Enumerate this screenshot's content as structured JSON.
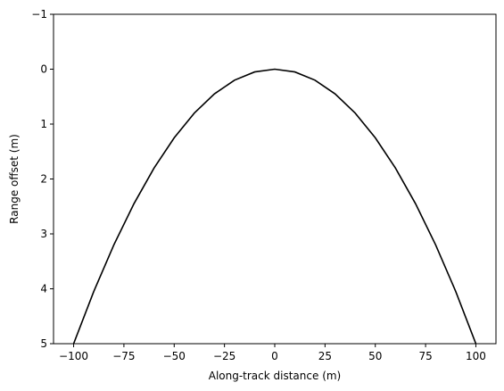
{
  "chart_data": {
    "type": "line",
    "title": "",
    "xlabel": "Along-track distance (m)",
    "ylabel": "Range offset (m)",
    "xlim": [
      -110,
      110
    ],
    "ylim": [
      5,
      -1
    ],
    "y_inverted": true,
    "grid": false,
    "legend": "none",
    "x_ticks": [
      {
        "value": -100,
        "label": "−100"
      },
      {
        "value": -75,
        "label": "−75"
      },
      {
        "value": -50,
        "label": "−50"
      },
      {
        "value": -25,
        "label": "−25"
      },
      {
        "value": 0,
        "label": "0"
      },
      {
        "value": 25,
        "label": "25"
      },
      {
        "value": 50,
        "label": "50"
      },
      {
        "value": 75,
        "label": "75"
      },
      {
        "value": 100,
        "label": "100"
      }
    ],
    "y_ticks": [
      {
        "value": -1,
        "label": "−1"
      },
      {
        "value": 0,
        "label": "0"
      },
      {
        "value": 1,
        "label": "1"
      },
      {
        "value": 2,
        "label": "2"
      },
      {
        "value": 3,
        "label": "3"
      },
      {
        "value": 4,
        "label": "4"
      },
      {
        "value": 5,
        "label": "5"
      }
    ],
    "series": [
      {
        "color": "#000000",
        "x": [
          -100,
          -90,
          -80,
          -70,
          -60,
          -50,
          -40,
          -30,
          -20,
          -10,
          0,
          10,
          20,
          30,
          40,
          50,
          60,
          70,
          80,
          90,
          100
        ],
        "y": [
          5.0,
          4.05,
          3.2,
          2.45,
          1.8,
          1.25,
          0.8,
          0.45,
          0.2,
          0.05,
          0.0,
          0.05,
          0.2,
          0.45,
          0.8,
          1.25,
          1.8,
          2.45,
          3.2,
          4.05,
          5.0
        ]
      }
    ]
  }
}
